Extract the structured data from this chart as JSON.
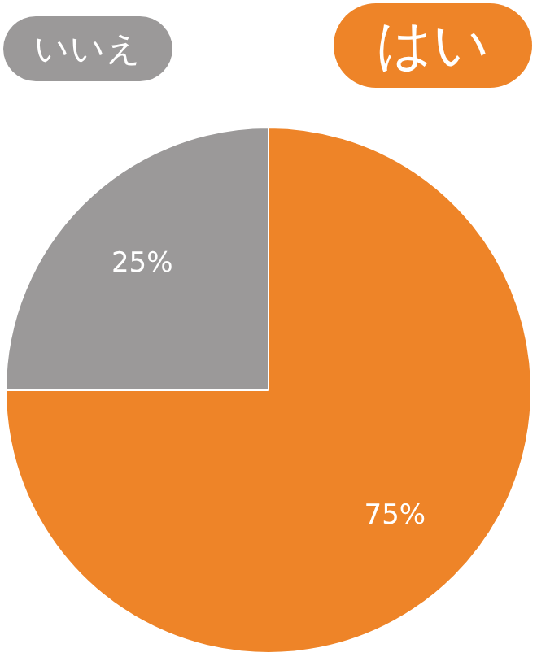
{
  "chart_data": {
    "type": "pie",
    "categories": [
      "はい",
      "いいえ"
    ],
    "values": [
      75,
      25
    ],
    "colors": [
      "#ee8428",
      "#9b9999"
    ],
    "value_labels": [
      "75%",
      "25%"
    ]
  }
}
